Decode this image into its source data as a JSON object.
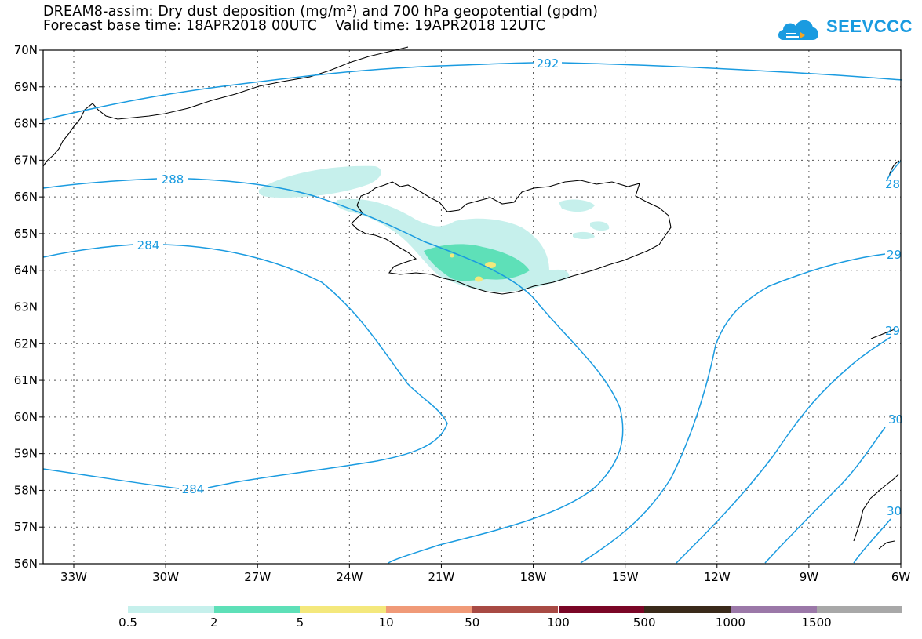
{
  "header": {
    "title_line1": "DREAM8-assim: Dry dust deposition (mg/m²) and 700 hPa geopotential (gpdm)",
    "title_line2": "Forecast base time: 18APR2018 00UTC    Valid time: 19APR2018 12UTC"
  },
  "logo": {
    "text": "SEEVCCC",
    "icon": "cloud-icon",
    "color": "#1a9be0"
  },
  "map": {
    "lat_labels": [
      "70N",
      "69N",
      "68N",
      "67N",
      "66N",
      "65N",
      "64N",
      "63N",
      "62N",
      "61N",
      "60N",
      "59N",
      "58N",
      "57N",
      "56N"
    ],
    "lon_labels": [
      "33W",
      "30W",
      "27W",
      "24W",
      "21W",
      "18W",
      "15W",
      "12W",
      "9W",
      "6W"
    ],
    "contour_color": "#1a9be0",
    "contour_labels": [
      "292",
      "288",
      "284",
      "284",
      "28",
      "29",
      "29",
      "30",
      "30"
    ]
  },
  "legend": {
    "colors": [
      "#c6f0ec",
      "#5ee0b8",
      "#f4e87c",
      "#f09a78",
      "#a84a44",
      "#7a0626",
      "#3a2a1a",
      "#9b78a8",
      "#a8a8a8"
    ],
    "labels": [
      "0.5",
      "2",
      "5",
      "10",
      "50",
      "100",
      "500",
      "1000",
      "1500"
    ]
  }
}
